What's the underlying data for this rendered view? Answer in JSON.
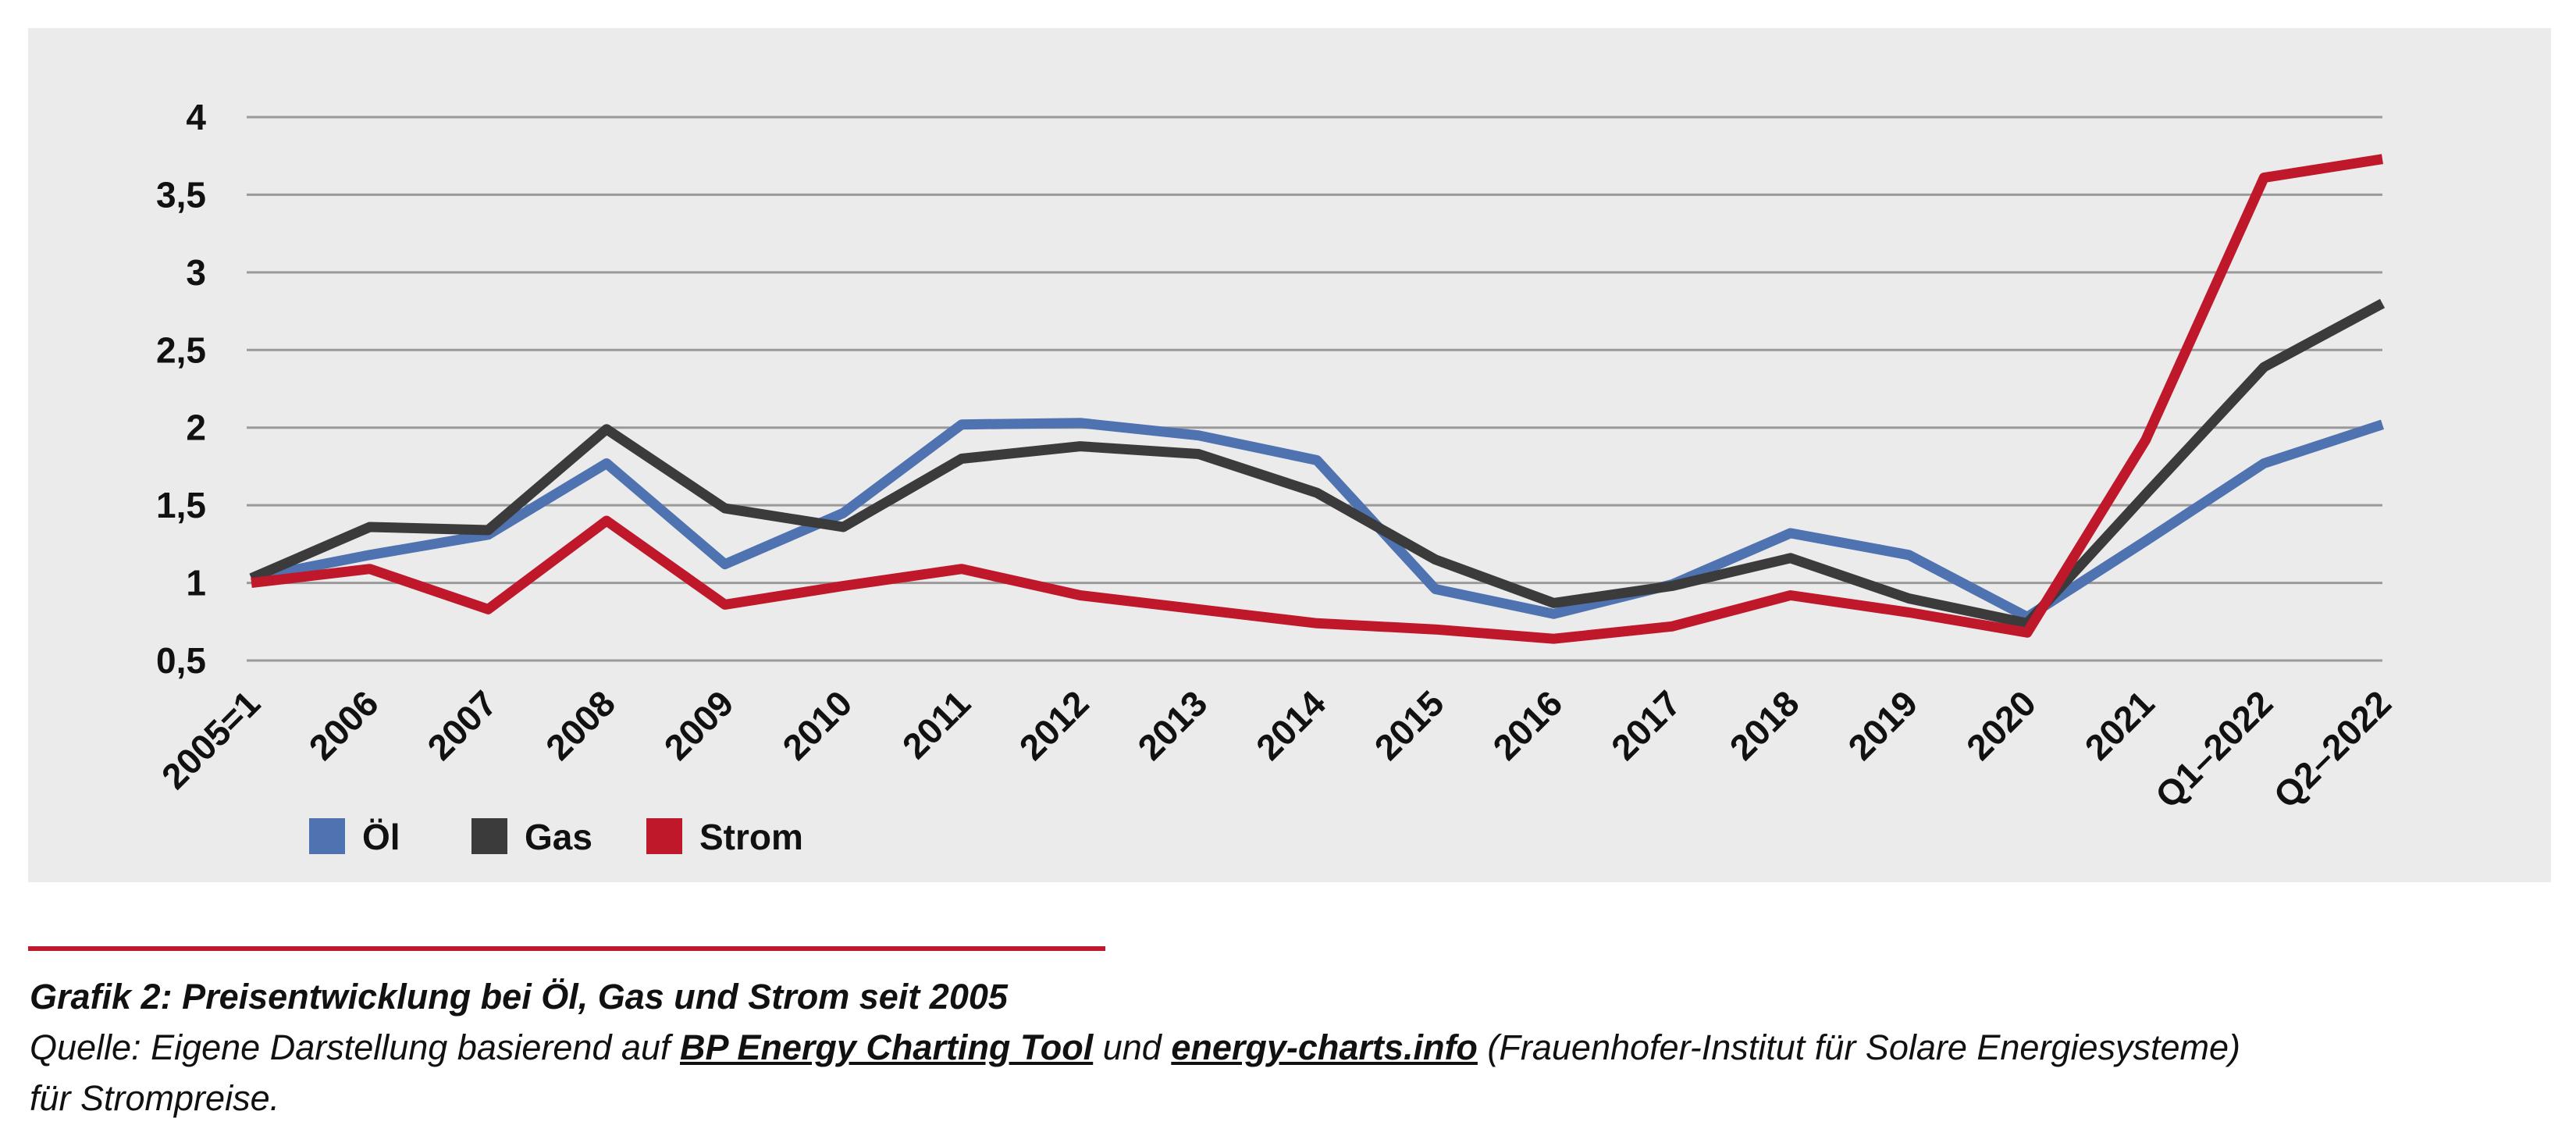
{
  "colors": {
    "oel": "#4f72b1",
    "gas": "#3b3b3b",
    "strom": "#c0182b",
    "background": "#ebebeb",
    "grid": "#9a9a9a"
  },
  "chart_data": {
    "type": "line",
    "categories": [
      "2005=1",
      "2006",
      "2007",
      "2008",
      "2009",
      "2010",
      "2011",
      "2012",
      "2013",
      "2014",
      "2015",
      "2016",
      "2017",
      "2018",
      "2019",
      "2020",
      "2021",
      "Q1–2022",
      "Q2–2022"
    ],
    "series": [
      {
        "name": "Öl",
        "color": "#4f72b1",
        "values": [
          1.03,
          1.18,
          1.31,
          1.77,
          1.12,
          1.45,
          2.02,
          2.03,
          1.95,
          1.79,
          0.96,
          0.8,
          0.99,
          1.32,
          1.18,
          0.78,
          1.27,
          1.77,
          2.02
        ]
      },
      {
        "name": "Gas",
        "color": "#3b3b3b",
        "values": [
          1.03,
          1.36,
          1.34,
          1.99,
          1.48,
          1.36,
          1.8,
          1.88,
          1.83,
          1.58,
          1.15,
          0.87,
          0.98,
          1.16,
          0.9,
          0.74,
          1.57,
          2.39,
          2.8
        ]
      },
      {
        "name": "Strom",
        "color": "#c0182b",
        "values": [
          1.0,
          1.09,
          0.83,
          1.4,
          0.86,
          0.98,
          1.09,
          0.92,
          0.83,
          0.74,
          0.7,
          0.64,
          0.72,
          0.92,
          0.81,
          0.68,
          1.92,
          3.61,
          3.73
        ]
      }
    ],
    "yticks": [
      0.5,
      1,
      1.5,
      2,
      2.5,
      3,
      3.5,
      4
    ],
    "ytick_labels": [
      "0,5",
      "1",
      "1,5",
      "2",
      "2,5",
      "3",
      "3,5",
      "4"
    ],
    "ylim": [
      0.5,
      4
    ],
    "grid": true,
    "legend_position": "bottom-left",
    "xlabel": "",
    "ylabel": ""
  },
  "caption": {
    "title": "Grafik 2: Preisentwicklung bei Öl, Gas und Strom seit 2005",
    "source_prefix": "Quelle: Eigene Darstellung basierend auf ",
    "link1": "BP Energy Charting Tool",
    "middle": " und ",
    "link2": "energy-charts.info",
    "suffix": " (Frauenhofer-Institut für Solare Energiesysteme)",
    "line2": "für Strompreise."
  }
}
